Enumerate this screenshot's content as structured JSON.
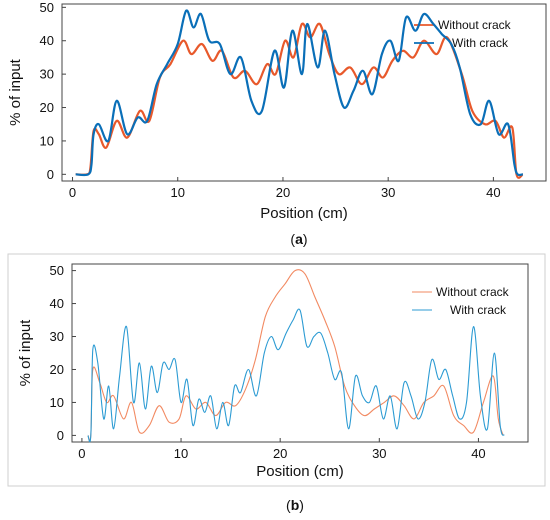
{
  "colors": {
    "without": "#E8592B",
    "with": "#0A6FB8",
    "without_b": "#F28A62",
    "with_b": "#2C9BD3",
    "axis": "#444444"
  },
  "panels": [
    {
      "caption_open": "(",
      "caption_letter": "a",
      "caption_close": ")",
      "legend_position": "top-right",
      "chart_data": {
        "type": "line",
        "xlabel": "Position (cm)",
        "ylabel": "% of input",
        "xlim": [
          -1,
          45
        ],
        "ylim": [
          -2,
          51
        ],
        "xticks": [
          "0",
          "10",
          "20",
          "30",
          "40"
        ],
        "yticks": [
          "0",
          "10",
          "20",
          "30",
          "40",
          "50"
        ],
        "grid": false,
        "series": [
          {
            "name": "Without crack",
            "style": "thick",
            "points": [
              [
                0.3,
                0
              ],
              [
                1.4,
                0
              ],
              [
                1.7,
                2
              ],
              [
                2.0,
                13
              ],
              [
                2.5,
                12
              ],
              [
                3.2,
                8
              ],
              [
                4.2,
                16
              ],
              [
                5.2,
                11
              ],
              [
                6.4,
                19
              ],
              [
                7.3,
                16
              ],
              [
                8.3,
                29
              ],
              [
                9.3,
                33
              ],
              [
                10.5,
                40
              ],
              [
                11.3,
                36
              ],
              [
                12.3,
                39
              ],
              [
                13.3,
                34
              ],
              [
                14.2,
                37
              ],
              [
                15.3,
                29
              ],
              [
                16.4,
                31
              ],
              [
                17.5,
                27
              ],
              [
                18.5,
                33
              ],
              [
                19.3,
                30
              ],
              [
                20.2,
                40
              ],
              [
                21.0,
                35
              ],
              [
                21.8,
                45
              ],
              [
                22.6,
                41
              ],
              [
                23.5,
                45
              ],
              [
                24.4,
                36
              ],
              [
                25.3,
                30
              ],
              [
                26.4,
                32
              ],
              [
                27.5,
                27
              ],
              [
                28.6,
                32
              ],
              [
                29.5,
                29
              ],
              [
                30.4,
                34
              ],
              [
                31.4,
                37
              ],
              [
                32.4,
                35
              ],
              [
                33.4,
                40
              ],
              [
                34.6,
                36
              ],
              [
                35.6,
                41
              ],
              [
                37.0,
                30
              ],
              [
                38.0,
                19
              ],
              [
                39.2,
                15
              ],
              [
                40.2,
                16
              ],
              [
                41.0,
                11
              ],
              [
                41.8,
                14
              ],
              [
                42.2,
                0
              ],
              [
                42.8,
                0
              ]
            ]
          },
          {
            "name": "With crack",
            "style": "thick",
            "points": [
              [
                0.3,
                0
              ],
              [
                1.5,
                0
              ],
              [
                1.8,
                3
              ],
              [
                2.0,
                12
              ],
              [
                2.5,
                15
              ],
              [
                3.4,
                10
              ],
              [
                4.2,
                22
              ],
              [
                5.2,
                12
              ],
              [
                6.2,
                17
              ],
              [
                7.1,
                16
              ],
              [
                8.0,
                27
              ],
              [
                9.0,
                33
              ],
              [
                10.0,
                39
              ],
              [
                10.8,
                49
              ],
              [
                11.5,
                44
              ],
              [
                12.2,
                48
              ],
              [
                13.0,
                40
              ],
              [
                14.0,
                39
              ],
              [
                15.0,
                30
              ],
              [
                16.0,
                35
              ],
              [
                17.0,
                22
              ],
              [
                18.0,
                19
              ],
              [
                19.2,
                37
              ],
              [
                20.1,
                26
              ],
              [
                20.9,
                43
              ],
              [
                21.8,
                30
              ],
              [
                22.3,
                45
              ],
              [
                23.3,
                32
              ],
              [
                24.0,
                43
              ],
              [
                24.9,
                30
              ],
              [
                25.8,
                20
              ],
              [
                26.7,
                25
              ],
              [
                27.6,
                31
              ],
              [
                28.5,
                24
              ],
              [
                29.4,
                36
              ],
              [
                30.2,
                40
              ],
              [
                31.0,
                34
              ],
              [
                31.7,
                47
              ],
              [
                32.6,
                43
              ],
              [
                33.4,
                48
              ],
              [
                34.3,
                45
              ],
              [
                35.1,
                42
              ],
              [
                36.0,
                39
              ],
              [
                36.8,
                32
              ],
              [
                37.8,
                18
              ],
              [
                38.8,
                15
              ],
              [
                39.6,
                22
              ],
              [
                40.5,
                12
              ],
              [
                41.4,
                15
              ],
              [
                42.0,
                3
              ],
              [
                42.3,
                0
              ],
              [
                42.8,
                0
              ]
            ]
          }
        ]
      }
    },
    {
      "caption_open": "(",
      "caption_letter": "b",
      "caption_close": ")",
      "legend_position": "top-right",
      "chart_data": {
        "type": "line",
        "xlabel": "Position (cm)",
        "ylabel": "% of input",
        "xlim": [
          -1,
          45
        ],
        "ylim": [
          -2,
          52
        ],
        "xticks": [
          "0",
          "10",
          "20",
          "30",
          "40"
        ],
        "yticks": [
          "0",
          "10",
          "20",
          "30",
          "40",
          "50"
        ],
        "grid": false,
        "series": [
          {
            "name": "Without crack",
            "style": "thin",
            "points": [
              [
                0.6,
                0
              ],
              [
                0.9,
                0
              ],
              [
                1.1,
                20
              ],
              [
                1.8,
                16
              ],
              [
                2.5,
                10
              ],
              [
                3.2,
                12
              ],
              [
                4.2,
                5
              ],
              [
                5.0,
                10
              ],
              [
                5.8,
                1
              ],
              [
                6.8,
                3
              ],
              [
                7.8,
                9
              ],
              [
                8.8,
                4
              ],
              [
                9.8,
                5
              ],
              [
                10.5,
                12
              ],
              [
                11.5,
                8
              ],
              [
                12.5,
                10
              ],
              [
                13.5,
                6
              ],
              [
                14.5,
                10
              ],
              [
                15.5,
                9
              ],
              [
                16.5,
                14
              ],
              [
                17.5,
                23
              ],
              [
                18.5,
                36
              ],
              [
                19.5,
                42
              ],
              [
                20.5,
                46
              ],
              [
                21.5,
                50
              ],
              [
                22.5,
                49
              ],
              [
                23.5,
                42
              ],
              [
                24.5,
                35
              ],
              [
                25.5,
                27
              ],
              [
                26.5,
                15
              ],
              [
                27.5,
                9
              ],
              [
                28.5,
                6
              ],
              [
                29.5,
                8
              ],
              [
                30.5,
                10
              ],
              [
                31.5,
                12
              ],
              [
                32.5,
                9
              ],
              [
                33.5,
                5
              ],
              [
                34.5,
                10
              ],
              [
                35.5,
                12
              ],
              [
                36.5,
                15
              ],
              [
                37.5,
                6
              ],
              [
                38.5,
                3
              ],
              [
                39.5,
                1
              ],
              [
                40.5,
                10
              ],
              [
                41.5,
                18
              ],
              [
                42.0,
                5
              ],
              [
                42.5,
                0
              ]
            ]
          },
          {
            "name": "With crack",
            "style": "thin",
            "points": [
              [
                0.6,
                0
              ],
              [
                0.9,
                0
              ],
              [
                1.1,
                26
              ],
              [
                1.6,
                22
              ],
              [
                2.2,
                5
              ],
              [
                2.7,
                15
              ],
              [
                3.2,
                2
              ],
              [
                3.8,
                18
              ],
              [
                4.5,
                33
              ],
              [
                5.2,
                10
              ],
              [
                5.8,
                22
              ],
              [
                6.4,
                8
              ],
              [
                7.0,
                21
              ],
              [
                7.6,
                13
              ],
              [
                8.2,
                22
              ],
              [
                8.8,
                20
              ],
              [
                9.4,
                23
              ],
              [
                10.0,
                10
              ],
              [
                10.6,
                17
              ],
              [
                11.2,
                3
              ],
              [
                11.8,
                11
              ],
              [
                12.4,
                7
              ],
              [
                13.0,
                12
              ],
              [
                13.6,
                2
              ],
              [
                14.2,
                10
              ],
              [
                14.8,
                3
              ],
              [
                15.4,
                15
              ],
              [
                16.0,
                13
              ],
              [
                16.8,
                20
              ],
              [
                17.6,
                12
              ],
              [
                18.4,
                25
              ],
              [
                19.1,
                30
              ],
              [
                19.8,
                26
              ],
              [
                20.6,
                31
              ],
              [
                21.3,
                35
              ],
              [
                22.0,
                38
              ],
              [
                22.7,
                27
              ],
              [
                23.4,
                30
              ],
              [
                24.1,
                31
              ],
              [
                24.8,
                25
              ],
              [
                25.5,
                17
              ],
              [
                26.2,
                19
              ],
              [
                26.9,
                2
              ],
              [
                27.6,
                18
              ],
              [
                28.3,
                12
              ],
              [
                29.0,
                10
              ],
              [
                29.7,
                15
              ],
              [
                30.4,
                5
              ],
              [
                31.1,
                12
              ],
              [
                31.8,
                2
              ],
              [
                32.5,
                16
              ],
              [
                33.2,
                12
              ],
              [
                33.9,
                5
              ],
              [
                34.6,
                10
              ],
              [
                35.3,
                23
              ],
              [
                36.0,
                17
              ],
              [
                36.7,
                20
              ],
              [
                37.4,
                12
              ],
              [
                38.1,
                5
              ],
              [
                38.8,
                10
              ],
              [
                39.5,
                33
              ],
              [
                40.2,
                12
              ],
              [
                40.9,
                2
              ],
              [
                41.6,
                25
              ],
              [
                42.2,
                3
              ],
              [
                42.6,
                0
              ]
            ]
          }
        ]
      }
    }
  ]
}
